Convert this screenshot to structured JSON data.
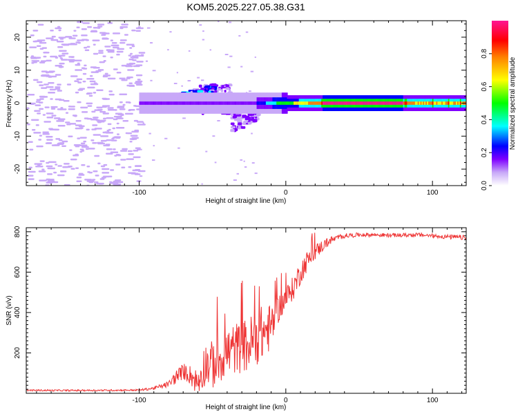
{
  "title": "KOM5.2025.227.05.38.G31",
  "chart_data": [
    {
      "type": "heatmap",
      "xlabel": "Height of straight line (km)",
      "ylabel": "Frequency (Hz)",
      "xlim": [
        -177,
        123
      ],
      "ylim": [
        -25,
        25
      ],
      "xticks": [
        -100,
        0,
        100
      ],
      "xtick_labels": [
        "-100",
        "0",
        "100"
      ],
      "yticks": [
        -20,
        -10,
        0,
        10,
        20
      ],
      "ytick_labels": [
        "-20",
        "-10",
        "0",
        "10",
        "20"
      ],
      "colorbar": {
        "label": "Normalized spectral amplitude",
        "range": [
          0,
          1
        ],
        "ticks": [
          0,
          0.2,
          0.4,
          0.6,
          0.8
        ],
        "tick_labels": [
          "0.0",
          "0.2",
          "0.4",
          "0.6",
          "0.8"
        ],
        "colors": [
          "#ffffff",
          "#c8a8f8",
          "#7f00ff",
          "#0000ff",
          "#00ffff",
          "#00ff00",
          "#ffff00",
          "#ff8000",
          "#ff0000",
          "#ff1493"
        ]
      },
      "features": [
        {
          "name": "scattered noise",
          "x_range": [
            -177,
            -100
          ],
          "y_range": [
            -25,
            25
          ],
          "amplitude": 0.05
        },
        {
          "name": "main signal track",
          "x_range": [
            -100,
            123
          ],
          "y_center": 0,
          "amplitude_peak": 0.95
        },
        {
          "name": "early blobs",
          "x_range": [
            -95,
            -50
          ],
          "y_range": [
            -2,
            6
          ],
          "amplitude": 0.35
        },
        {
          "name": "doppler excursion",
          "x_range": [
            -60,
            -20
          ],
          "y_range": [
            -8,
            8
          ],
          "amplitude": 0.2
        }
      ]
    },
    {
      "type": "line",
      "xlabel": "Height of straight line (km)",
      "ylabel": "SNR (v/v)",
      "xlim": [
        -177,
        123
      ],
      "ylim": [
        0,
        820
      ],
      "xticks": [
        -100,
        0,
        100
      ],
      "xtick_labels": [
        "-100",
        "0",
        "100"
      ],
      "yticks": [
        200,
        400,
        600,
        800
      ],
      "ytick_labels": [
        "200",
        "400",
        "600",
        "800"
      ],
      "series": [
        {
          "name": "SNR",
          "color": "#ee3333",
          "x": [
            -177,
            -150,
            -120,
            -100,
            -90,
            -80,
            -75,
            -70,
            -65,
            -60,
            -55,
            -50,
            -45,
            -40,
            -35,
            -30,
            -25,
            -20,
            -15,
            -10,
            -5,
            0,
            5,
            10,
            15,
            20,
            25,
            30,
            35,
            40,
            50,
            60,
            70,
            80,
            90,
            100,
            110,
            123
          ],
          "y": [
            15,
            14,
            15,
            16,
            25,
            45,
            80,
            110,
            90,
            50,
            150,
            140,
            180,
            200,
            220,
            230,
            240,
            280,
            300,
            330,
            420,
            470,
            520,
            600,
            660,
            700,
            730,
            755,
            770,
            780,
            785,
            785,
            782,
            783,
            785,
            780,
            775,
            770
          ],
          "noise": [
            4,
            4,
            4,
            4,
            8,
            15,
            35,
            40,
            50,
            70,
            110,
            120,
            130,
            130,
            130,
            130,
            140,
            140,
            140,
            110,
            70,
            60,
            60,
            60,
            50,
            40,
            30,
            20,
            15,
            12,
            10,
            10,
            10,
            10,
            10,
            10,
            12,
            12
          ]
        }
      ]
    }
  ]
}
